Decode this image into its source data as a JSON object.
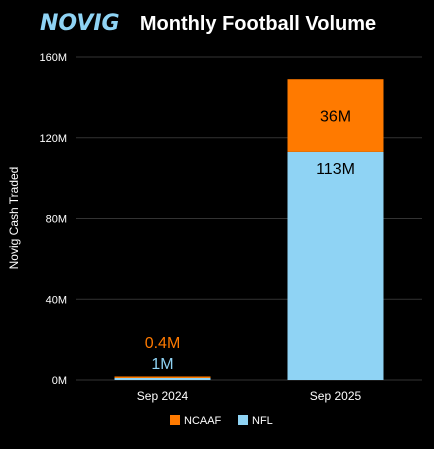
{
  "brand": {
    "logo_text": "NOVIG",
    "logo_color": "#8fd3f4"
  },
  "chart_data": {
    "type": "bar",
    "stacked": true,
    "title": "Monthly Football Volume",
    "xlabel": "",
    "ylabel": "Novig Cash Traded",
    "categories": [
      "Sep 2024",
      "Sep 2025"
    ],
    "ylim": [
      0,
      160
    ],
    "y_unit": "M",
    "y_ticks": [
      "0M",
      "40M",
      "80M",
      "120M",
      "160M"
    ],
    "y_tick_values": [
      0,
      40,
      80,
      120,
      160
    ],
    "grid": true,
    "legend_position": "bottom-center",
    "series": [
      {
        "name": "NFL",
        "values": [
          1,
          113
        ],
        "color": "#8fd3f4",
        "labels": [
          "1M",
          "113M"
        ],
        "label_colors": [
          "#8fd3f4",
          "#000000"
        ]
      },
      {
        "name": "NCAAF",
        "values": [
          0.4,
          36
        ],
        "color": "#ff7a00",
        "labels": [
          "0.4M",
          "36M"
        ],
        "label_colors": [
          "#ff7a00",
          "#000000"
        ]
      }
    ],
    "background": "#000000",
    "gridline_color": "#333333",
    "text_color": "#ffffff"
  }
}
